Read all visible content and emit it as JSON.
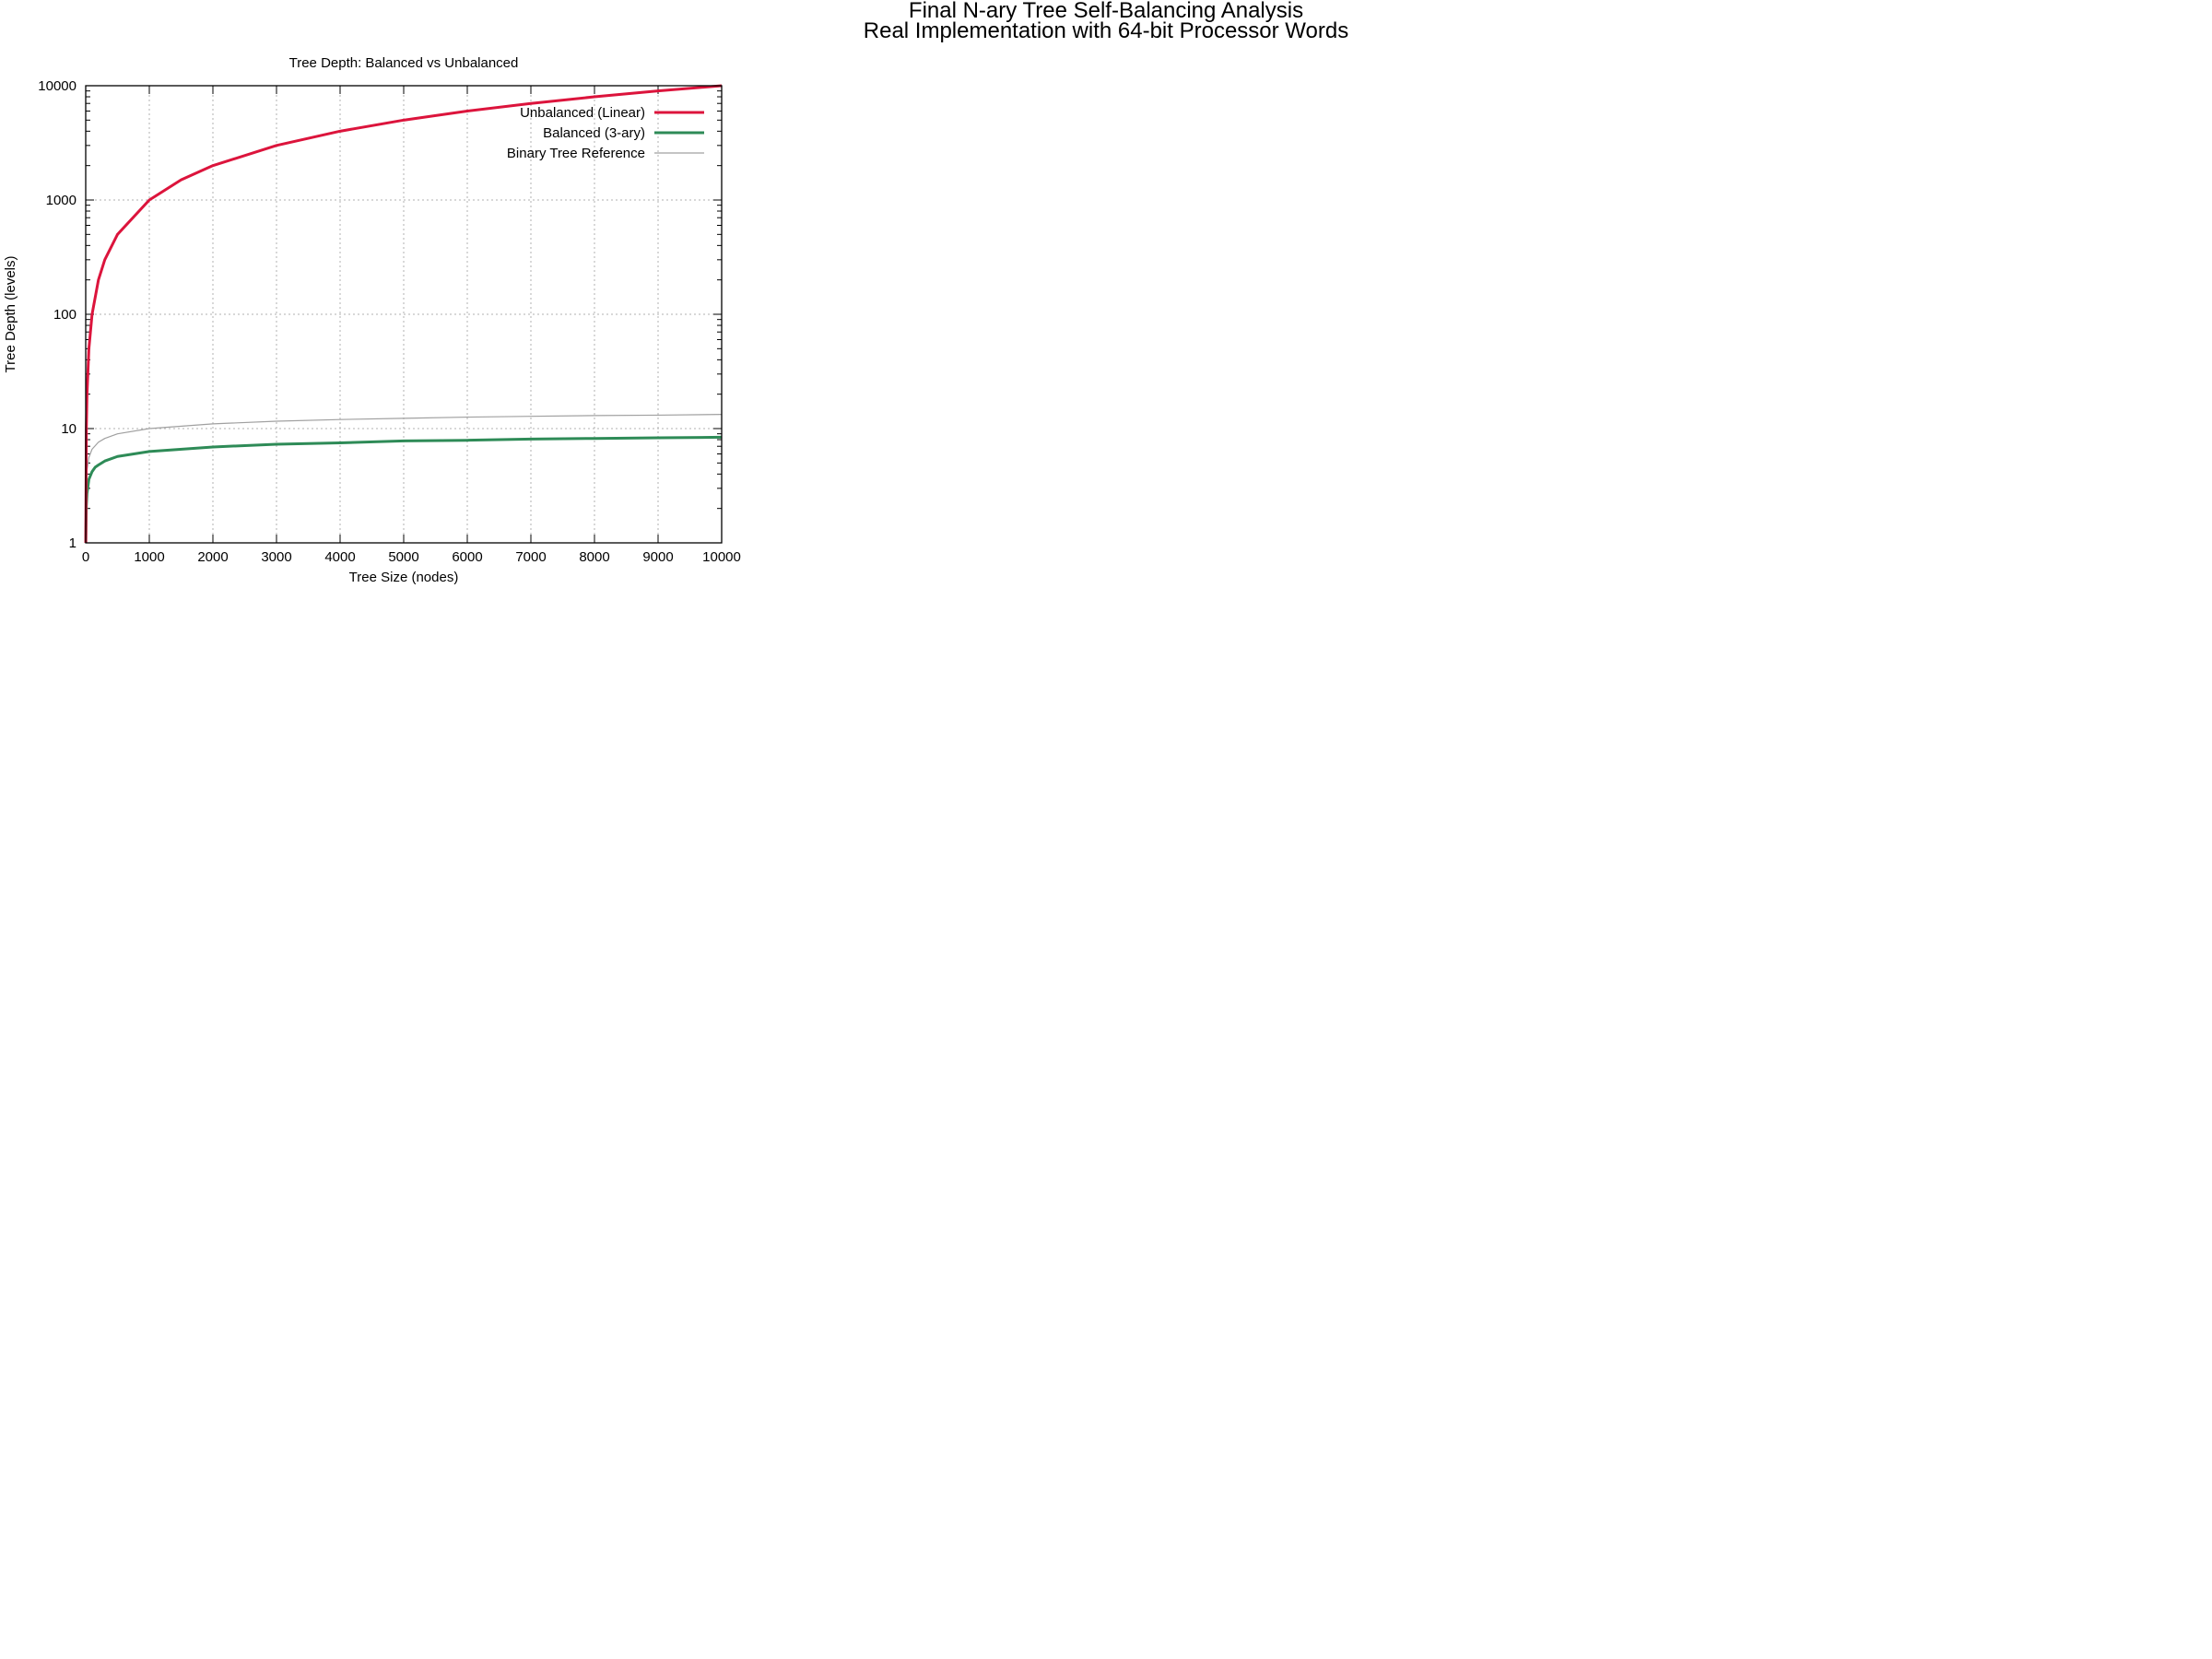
{
  "page": {
    "title_line1": "Final N-ary Tree Self-Balancing Analysis",
    "title_line2": "Real Implementation with 64-bit Processor Words"
  },
  "chart_data": {
    "type": "line",
    "title": "Tree Depth: Balanced vs Unbalanced",
    "xlabel": "Tree Size (nodes)",
    "ylabel": "Tree Depth (levels)",
    "xlim": [
      0,
      10000
    ],
    "ylim": [
      1,
      10000
    ],
    "yscale": "log",
    "grid": true,
    "legend_position": "top-right",
    "x_ticks": [
      0,
      1000,
      2000,
      3000,
      4000,
      5000,
      6000,
      7000,
      8000,
      9000,
      10000
    ],
    "y_ticks": [
      1,
      10,
      100,
      1000,
      10000
    ],
    "x_tick_labels": [
      "0",
      "1000",
      "2000",
      "3000",
      "4000",
      "5000",
      "6000",
      "7000",
      "8000",
      "9000",
      "10000"
    ],
    "y_tick_labels": [
      "1",
      "10",
      "100",
      "1000",
      "10000"
    ],
    "series": [
      {
        "name": "Unbalanced (Linear)",
        "color": "#dc143c",
        "x": [
          1,
          10,
          20,
          50,
          100,
          200,
          300,
          500,
          1000,
          1500,
          2000,
          3000,
          4000,
          5000,
          6000,
          7000,
          8000,
          9000,
          10000
        ],
        "y": [
          1,
          10,
          20,
          50,
          100,
          200,
          300,
          500,
          1000,
          1500,
          2000,
          3000,
          4000,
          5000,
          6000,
          7000,
          8000,
          9000,
          10000
        ]
      },
      {
        "name": "Balanced (3-ary)",
        "color": "#2e8b57",
        "x": [
          1,
          10,
          20,
          50,
          100,
          150,
          200,
          300,
          500,
          1000,
          2000,
          3000,
          4000,
          5000,
          6000,
          7000,
          8000,
          9000,
          10000
        ],
        "y": [
          1,
          2.1,
          2.7,
          3.6,
          4.2,
          4.6,
          4.8,
          5.2,
          5.7,
          6.3,
          6.9,
          7.3,
          7.5,
          7.8,
          7.9,
          8.1,
          8.2,
          8.3,
          8.4
        ]
      },
      {
        "name": "Binary Tree Reference",
        "color": "#a0a0a0",
        "x": [
          1,
          10,
          20,
          50,
          100,
          200,
          300,
          500,
          1000,
          2000,
          3000,
          4000,
          5000,
          6000,
          7000,
          8000,
          9000,
          10000
        ],
        "y": [
          1,
          3.3,
          4.3,
          5.6,
          6.6,
          7.6,
          8.2,
          9.0,
          10.0,
          11.0,
          11.6,
          12.0,
          12.3,
          12.6,
          12.8,
          13.0,
          13.1,
          13.3
        ]
      }
    ]
  }
}
